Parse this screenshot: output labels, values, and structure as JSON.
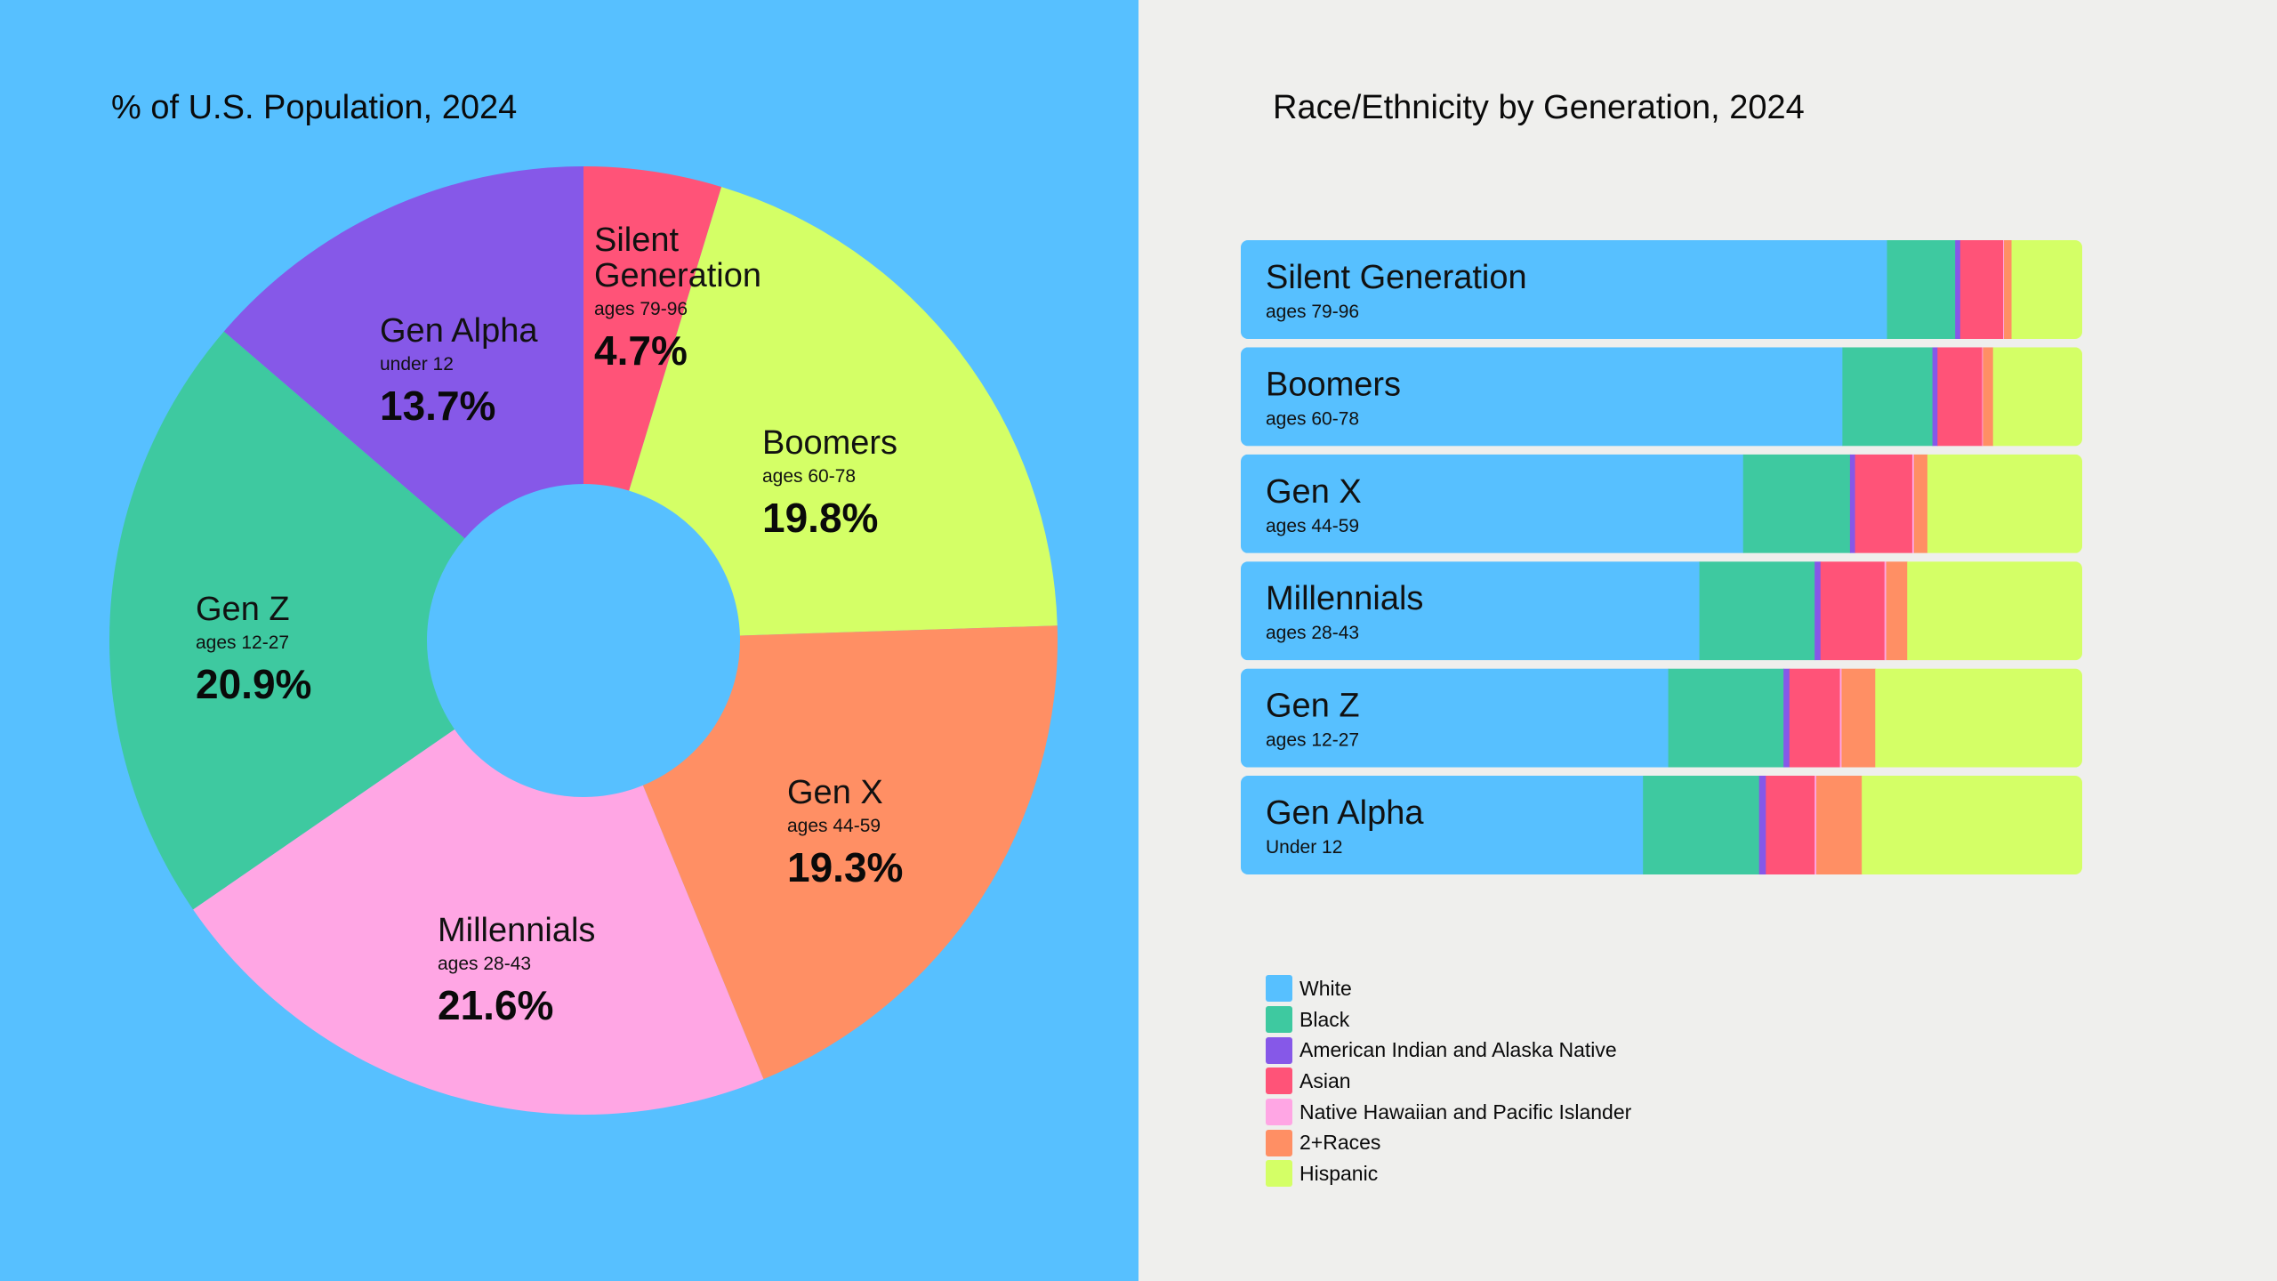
{
  "colors": {
    "left_background": "#57c0ff",
    "right_background": "#efefed",
    "race_colors": [
      "#57c0ff",
      "#3ec9a0",
      "#8658e8",
      "#ff5378",
      "#ffa6e4",
      "#ff8f64",
      "#d4ff66"
    ]
  },
  "chart_data": [
    {
      "type": "pie",
      "title": "% of U.S. Population, 2024",
      "donut": true,
      "labels": [
        "Silent Generation",
        "Boomers",
        "Gen X",
        "Millennials",
        "Gen Z",
        "Gen Alpha"
      ],
      "sublabels": [
        "ages 79-96",
        "ages 60-78",
        "ages 44-59",
        "ages 28-43",
        "ages 12-27",
        "under 12"
      ],
      "values": [
        4.7,
        19.8,
        19.3,
        21.6,
        20.9,
        13.7
      ],
      "value_labels": [
        "4.7%",
        "19.8%",
        "19.3%",
        "21.6%",
        "20.9%",
        "13.7%"
      ],
      "slice_colors": [
        "#ff5378",
        "#d4ff66",
        "#ff8f64",
        "#ffa6e4",
        "#3ec9a0",
        "#8658e8"
      ]
    },
    {
      "type": "bar",
      "orientation": "horizontal",
      "stacked": true,
      "normalized_percent": true,
      "title": "Race/Ethnicity by Generation, 2024",
      "categories": [
        "Silent Generation",
        "Boomers",
        "Gen X",
        "Millennials",
        "Gen Z",
        "Gen Alpha"
      ],
      "category_sublabels": [
        "ages 79-96",
        "ages 60-78",
        "ages 44-59",
        "ages 28-43",
        "ages 12-27",
        "Under 12"
      ],
      "series": [
        {
          "name": "White",
          "color": "#57c0ff",
          "values": [
            76.8,
            71.5,
            59.7,
            54.5,
            50.8,
            47.8
          ]
        },
        {
          "name": "Black",
          "color": "#3ec9a0",
          "values": [
            8.1,
            10.7,
            12.7,
            13.7,
            13.7,
            13.8
          ]
        },
        {
          "name": "American Indian and Alaska Native",
          "color": "#8658e8",
          "values": [
            0.6,
            0.6,
            0.6,
            0.7,
            0.7,
            0.8
          ]
        },
        {
          "name": "Asian",
          "color": "#ff5378",
          "values": [
            5.1,
            5.3,
            6.8,
            7.6,
            6.0,
            5.8
          ]
        },
        {
          "name": "Native Hawaiian and Pacific Islander",
          "color": "#ffa6e4",
          "values": [
            0.1,
            0.1,
            0.2,
            0.2,
            0.2,
            0.2
          ]
        },
        {
          "name": "2+Races",
          "color": "#ff8f64",
          "values": [
            0.9,
            1.2,
            1.6,
            2.5,
            4.0,
            5.4
          ]
        },
        {
          "name": "Hispanic",
          "color": "#d4ff66",
          "values": [
            8.4,
            10.6,
            18.4,
            20.8,
            24.6,
            26.2
          ]
        }
      ]
    }
  ]
}
